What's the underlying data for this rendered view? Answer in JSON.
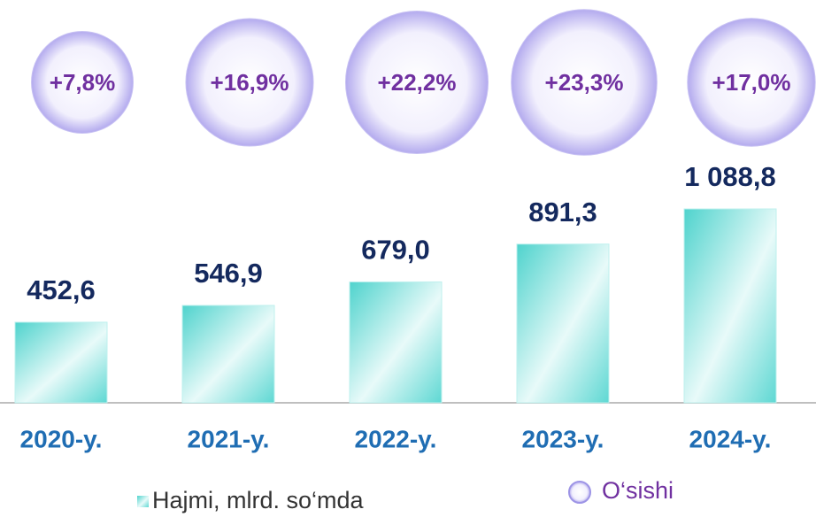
{
  "chart_data": {
    "type": "bar",
    "categories": [
      "2020-y.",
      "2021-y.",
      "2022-y.",
      "2023-y.",
      "2024-y."
    ],
    "series": [
      {
        "name": "Hajmi, mlrd. so‘mda",
        "color": "#5ed8d3",
        "values": [
          452.6,
          546.9,
          679.0,
          891.3,
          1088.8
        ],
        "value_labels": [
          "452,6",
          "546,9",
          "679,0",
          "891,3",
          "1 088,8"
        ]
      },
      {
        "name": "O‘sishi",
        "color": "#c4bdf0",
        "values": [
          7.8,
          16.9,
          22.2,
          23.3,
          17.0
        ],
        "value_labels": [
          "+7,8%",
          "+16,9%",
          "+22,2%",
          "+23,3%",
          "+17,0%"
        ]
      }
    ]
  }
}
